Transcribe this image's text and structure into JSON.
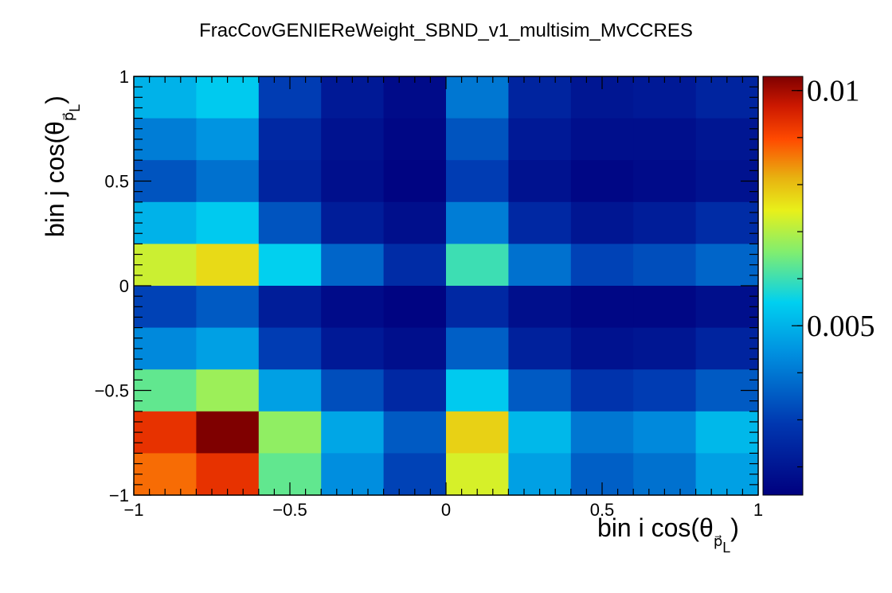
{
  "chart_data": {
    "type": "heatmap",
    "title": "FracCovGENIEReWeight_SBND_v1_multisim_MvCCRES",
    "x_axis": {
      "label_prefix": "bin i cos(θ",
      "label_sub": "p⃗",
      "label_subsub": "L",
      "label_suffix": ")",
      "range": [
        -1,
        1
      ],
      "tick_labels": [
        "−1",
        "−0.5",
        "0",
        "0.5",
        "1"
      ],
      "tick_values": [
        -1,
        -0.5,
        0,
        0.5,
        1
      ]
    },
    "y_axis": {
      "label_prefix": "bin j cos(θ",
      "label_sub": "p⃗",
      "label_subsub": "L",
      "label_suffix": ")",
      "range": [
        -1,
        1
      ],
      "tick_labels": [
        "−1",
        "−0.5",
        "0",
        "0.5",
        "1"
      ],
      "tick_values": [
        -1,
        -0.5,
        0,
        0.5,
        1
      ]
    },
    "bins": 10,
    "z_range": [
      0.0014,
      0.0103
    ],
    "palette_labels": [
      "0.005",
      "0.01"
    ],
    "palette_values": [
      0.005,
      0.01
    ],
    "colorscale": "ROOT kBird/jet (dark blue → cyan → yellow → red → dark red)",
    "values_rows_top_to_bottom": [
      [
        0.005,
        0.0054,
        0.003,
        0.0021,
        0.0017,
        0.004,
        0.0024,
        0.002,
        0.0021,
        0.0024
      ],
      [
        0.0041,
        0.0045,
        0.0025,
        0.0019,
        0.0016,
        0.0034,
        0.0021,
        0.0018,
        0.0018,
        0.002
      ],
      [
        0.0034,
        0.0039,
        0.0024,
        0.0018,
        0.0015,
        0.003,
        0.0019,
        0.0016,
        0.0017,
        0.0019
      ],
      [
        0.005,
        0.0054,
        0.0034,
        0.0022,
        0.0018,
        0.0041,
        0.0025,
        0.002,
        0.0022,
        0.0026
      ],
      [
        0.0072,
        0.0077,
        0.0055,
        0.0037,
        0.0026,
        0.006,
        0.0039,
        0.0031,
        0.0033,
        0.0037
      ],
      [
        0.0031,
        0.0035,
        0.0022,
        0.0017,
        0.0015,
        0.0025,
        0.0018,
        0.0016,
        0.0016,
        0.0018
      ],
      [
        0.0043,
        0.0047,
        0.003,
        0.0021,
        0.0018,
        0.0036,
        0.0023,
        0.0019,
        0.002,
        0.0024
      ],
      [
        0.0063,
        0.0068,
        0.0047,
        0.0033,
        0.0025,
        0.0054,
        0.0035,
        0.0028,
        0.003,
        0.0035
      ],
      [
        0.0093,
        0.0103,
        0.0067,
        0.0048,
        0.0035,
        0.0078,
        0.0051,
        0.004,
        0.0043,
        0.0051
      ],
      [
        0.0087,
        0.0093,
        0.0063,
        0.0044,
        0.0031,
        0.0073,
        0.0047,
        0.0036,
        0.0039,
        0.0047
      ]
    ]
  }
}
